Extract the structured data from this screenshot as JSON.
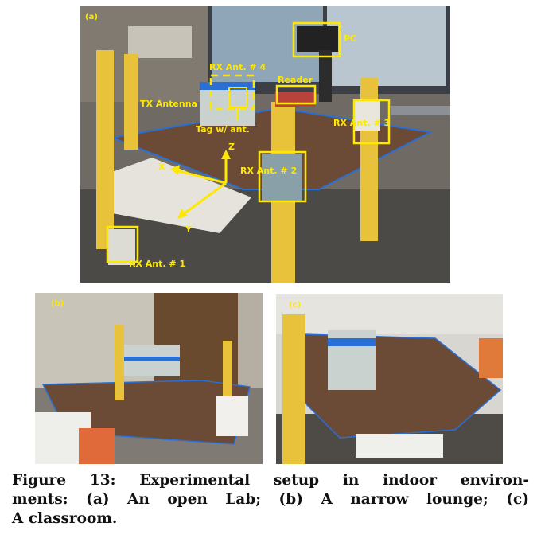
{
  "panels": {
    "a": {
      "tag": "(a)",
      "annotations": {
        "pc": "PC",
        "rx4": "RX Ant. # 4",
        "reader": "Reader",
        "tx": "TX Antenna",
        "rx3": "RX Ant. # 3",
        "tag_ant": "Tag w/ ant.",
        "z": "Z",
        "x": "X",
        "rx2": "RX Ant. # 2",
        "y": "Y",
        "rx1": "RX Ant. # 1"
      }
    },
    "b": {
      "tag": "(b)"
    },
    "c": {
      "tag": "(c)"
    }
  },
  "caption": {
    "line1": "Figure 13: Experimental setup in indoor environ-",
    "line2": "ments: (a) An open Lab; (b) A narrow lounge; (c)",
    "line3": "A classroom."
  },
  "colors": {
    "annotation": "#ffe800",
    "board": "#6b4a36",
    "stand": "#e8c23a",
    "marker_tape": "#2a6fd6"
  }
}
